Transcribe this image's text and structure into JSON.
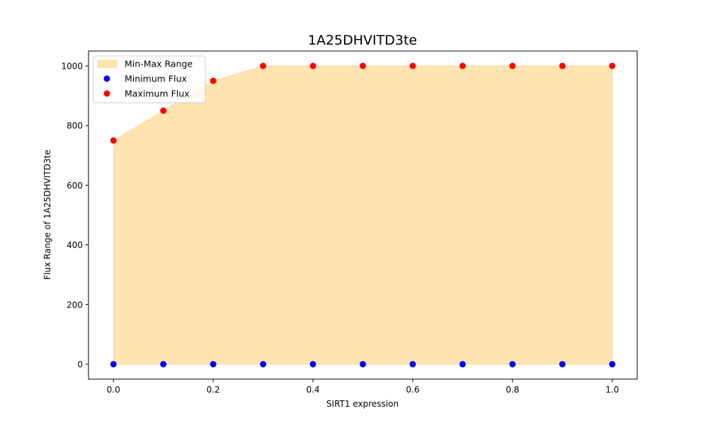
{
  "chart_data": {
    "type": "scatter",
    "title": "1A25DHVITD3te",
    "xlabel": "SIRT1 expression",
    "ylabel": "Flux Range of 1A25DHVITD3te",
    "xlim": [
      -0.05,
      1.05
    ],
    "ylim": [
      -50,
      1050
    ],
    "x_ticks": [
      0.0,
      0.2,
      0.4,
      0.6,
      0.8,
      1.0
    ],
    "x_tick_labels": [
      "0.0",
      "0.2",
      "0.4",
      "0.6",
      "0.8",
      "1.0"
    ],
    "y_ticks": [
      0,
      200,
      400,
      600,
      800,
      1000
    ],
    "y_tick_labels": [
      "0",
      "200",
      "400",
      "600",
      "800",
      "1000"
    ],
    "x": [
      0.0,
      0.1,
      0.2,
      0.3,
      0.4,
      0.5,
      0.6,
      0.7,
      0.8,
      0.9,
      1.0
    ],
    "series": [
      {
        "name": "Minimum Flux",
        "kind": "scatter",
        "color": "#0000ff",
        "values": [
          0,
          0,
          0,
          0,
          0,
          0,
          0,
          0,
          0,
          0,
          0
        ]
      },
      {
        "name": "Maximum Flux",
        "kind": "scatter",
        "color": "#ff0000",
        "values": [
          750,
          850,
          950,
          1000,
          1000,
          1000,
          1000,
          1000,
          1000,
          1000,
          1000
        ]
      }
    ],
    "fill": {
      "name": "Min-Max Range",
      "color": "#ffa500",
      "opacity": 0.3
    },
    "legend": {
      "placement": "top-left",
      "entries": [
        "Min-Max Range",
        "Minimum Flux",
        "Maximum Flux"
      ]
    },
    "grid": false
  }
}
